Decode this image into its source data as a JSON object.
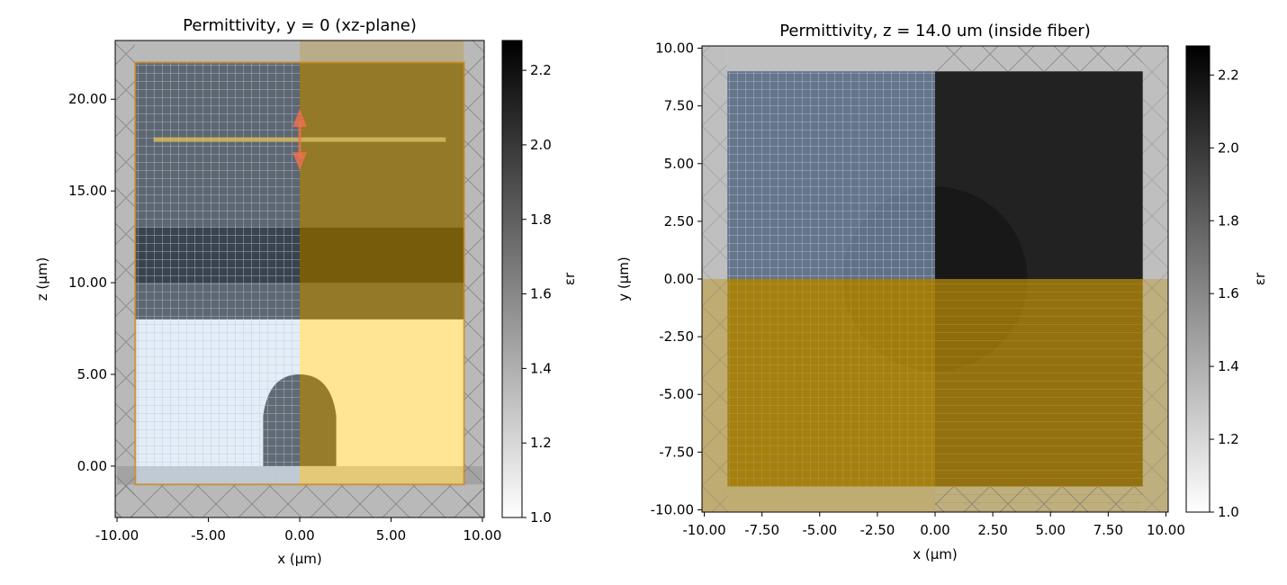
{
  "chart_data": [
    {
      "type": "heatmap",
      "title": "Permittivity, y = 0 (xz-plane)",
      "xlabel": "x (µm)",
      "ylabel": "z (µm)",
      "xlim": [
        -10.1,
        10.1
      ],
      "ylim": [
        -2.8,
        23.2
      ],
      "x_ticks": [
        -10,
        -5,
        0,
        5,
        10
      ],
      "x_tick_labels": [
        "-10.00",
        "-5.00",
        "0.00",
        "5.00",
        "10.00"
      ],
      "y_ticks": [
        0,
        5,
        10,
        15,
        20
      ],
      "y_tick_labels": [
        "0.00",
        "5.00",
        "10.00",
        "15.00",
        "20.00"
      ],
      "colorbar": {
        "label": "εr",
        "range": [
          1.0,
          2.28
        ],
        "ticks": [
          1.0,
          1.2,
          1.4,
          1.6,
          1.8,
          2.0,
          2.2
        ],
        "tick_labels": [
          "1.0",
          "1.2",
          "1.4",
          "1.6",
          "1.8",
          "2.0",
          "2.2"
        ]
      },
      "regions": [
        {
          "name": "cladding",
          "x": [
            -9,
            9
          ],
          "z": [
            8,
            22
          ],
          "eps": 1.96
        },
        {
          "name": "core",
          "x": [
            -9,
            9
          ],
          "z": [
            10,
            13
          ],
          "eps": 2.25
        },
        {
          "name": "air",
          "x": [
            -9,
            9
          ],
          "z": [
            -1,
            8
          ],
          "eps": 1.0
        },
        {
          "name": "lens",
          "x": [
            -2,
            2
          ],
          "z": [
            0,
            5
          ],
          "eps": 2.1
        },
        {
          "name": "substrate",
          "x": [
            -10,
            10
          ],
          "z": [
            -1,
            0
          ],
          "eps": 1.45
        }
      ],
      "source_z": 17.8,
      "source_x_range": [
        -8,
        8
      ]
    },
    {
      "type": "heatmap",
      "title": "Permittivity, z = 14.0 um (inside fiber)",
      "xlabel": "x (µm)",
      "ylabel": "y (µm)",
      "xlim": [
        -10.1,
        10.1
      ],
      "ylim": [
        -10.1,
        10.1
      ],
      "x_ticks": [
        -10,
        -7.5,
        -5,
        -2.5,
        0,
        2.5,
        5,
        7.5,
        10
      ],
      "x_tick_labels": [
        "-10.00",
        "-7.50",
        "-5.00",
        "-2.50",
        "0.00",
        "2.50",
        "5.00",
        "7.50",
        "10.00"
      ],
      "y_ticks": [
        -10,
        -7.5,
        -5,
        -2.5,
        0,
        2.5,
        5,
        7.5,
        10
      ],
      "y_tick_labels": [
        "-10.00",
        "-7.50",
        "-5.00",
        "-2.50",
        "0.00",
        "2.50",
        "5.00",
        "7.50",
        "10.00"
      ],
      "colorbar": {
        "label": "εr",
        "range": [
          1.0,
          2.28
        ],
        "ticks": [
          1.0,
          1.2,
          1.4,
          1.6,
          1.8,
          2.0,
          2.2
        ],
        "tick_labels": [
          "1.0",
          "1.2",
          "1.4",
          "1.6",
          "1.8",
          "2.0",
          "2.2"
        ]
      },
      "regions": [
        {
          "name": "fiber-cladding",
          "x": [
            -9,
            9
          ],
          "y": [
            -9,
            9
          ],
          "eps": 2.1
        },
        {
          "name": "fiber-core",
          "center": [
            0,
            0
          ],
          "radius": 4,
          "eps": 2.2
        }
      ]
    }
  ],
  "colors": {
    "symmetry_blue": "#9db9e0",
    "symmetry_yellow": "#ffc000",
    "pml_gray": "#808080",
    "source_arrow": "#f07050"
  }
}
